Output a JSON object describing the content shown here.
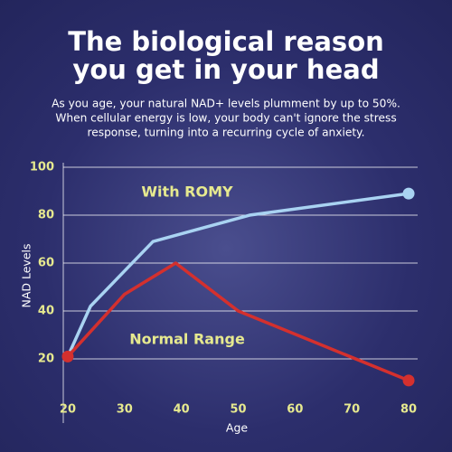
{
  "chart_data": {
    "type": "line",
    "title": [
      "The biological reason",
      "you get in your head"
    ],
    "subtitle": [
      "As you age, your natural NAD+ levels plumment by up to 50%.",
      "When cellular energy is low, your body can't ignore the stress",
      "response, turning into a recurring cycle of anxiety."
    ],
    "x_label": "Age",
    "y_label": "NAD Levels",
    "xlim": [
      18,
      82
    ],
    "ylim": [
      5,
      100
    ],
    "xticks": [
      20,
      30,
      40,
      50,
      60,
      70,
      80
    ],
    "yticks": [
      20,
      40,
      60,
      80,
      100
    ],
    "grid": true,
    "series": [
      {
        "name": "With ROMY",
        "color": "#a9d3f2",
        "x": [
          20,
          24,
          35,
          52,
          80
        ],
        "values": [
          21,
          42,
          69,
          80,
          89
        ]
      },
      {
        "name": "Normal Range",
        "color": "#d4302e",
        "x": [
          20,
          30,
          39,
          50,
          80
        ],
        "values": [
          21,
          47,
          60,
          40,
          11
        ]
      }
    ]
  }
}
